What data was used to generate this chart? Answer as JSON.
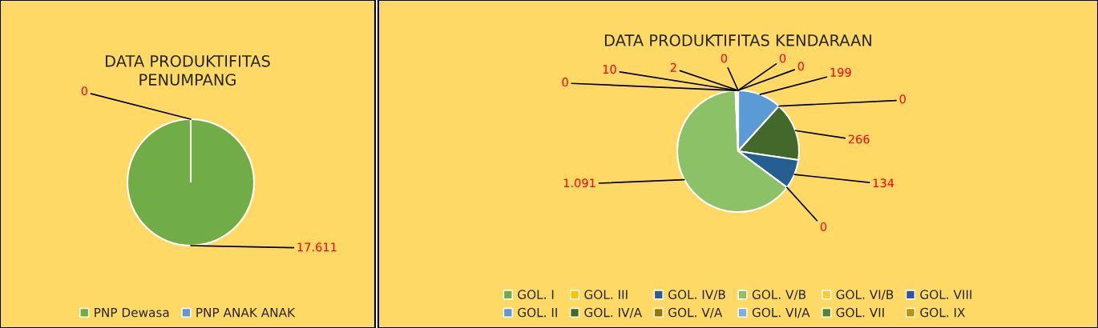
{
  "chart_data": [
    {
      "type": "pie",
      "title": "DATA PRODUKTIFITAS\nPENUMPANG",
      "categories": [
        "PNP Dewasa",
        "PNP ANAK ANAK"
      ],
      "values": [
        17611,
        0
      ],
      "colors": [
        "#70ad47",
        "#5b9bd5"
      ],
      "value_labels": [
        "17.611",
        "0"
      ],
      "legend": "bottom"
    },
    {
      "type": "pie",
      "title": "DATA PRODUKTIFITAS KENDARAAN",
      "categories": [
        "GOL. I",
        "GOL. II",
        "GOL. III",
        "GOL. IV/A",
        "GOL. IV/B",
        "GOL. V/A",
        "GOL. V/B",
        "GOL. VI/A",
        "GOL. VI/B",
        "GOL. VII",
        "GOL. VIII",
        "GOL. IX"
      ],
      "values": [
        0,
        199,
        0,
        266,
        134,
        0,
        1091,
        0,
        10,
        2,
        0,
        0
      ],
      "colors": [
        "#70ad47",
        "#5b9bd5",
        "#ffc000",
        "#43682b",
        "#255e91",
        "#997300",
        "#8cc168",
        "#7cafdd",
        "#ffcd33",
        "#548235",
        "#2f5597",
        "#bf9000"
      ],
      "value_labels": [
        "0",
        "199",
        "0",
        "266",
        "134",
        "0",
        "1.091",
        "0",
        "10",
        "2",
        "0",
        "0"
      ],
      "legend": "bottom"
    }
  ]
}
